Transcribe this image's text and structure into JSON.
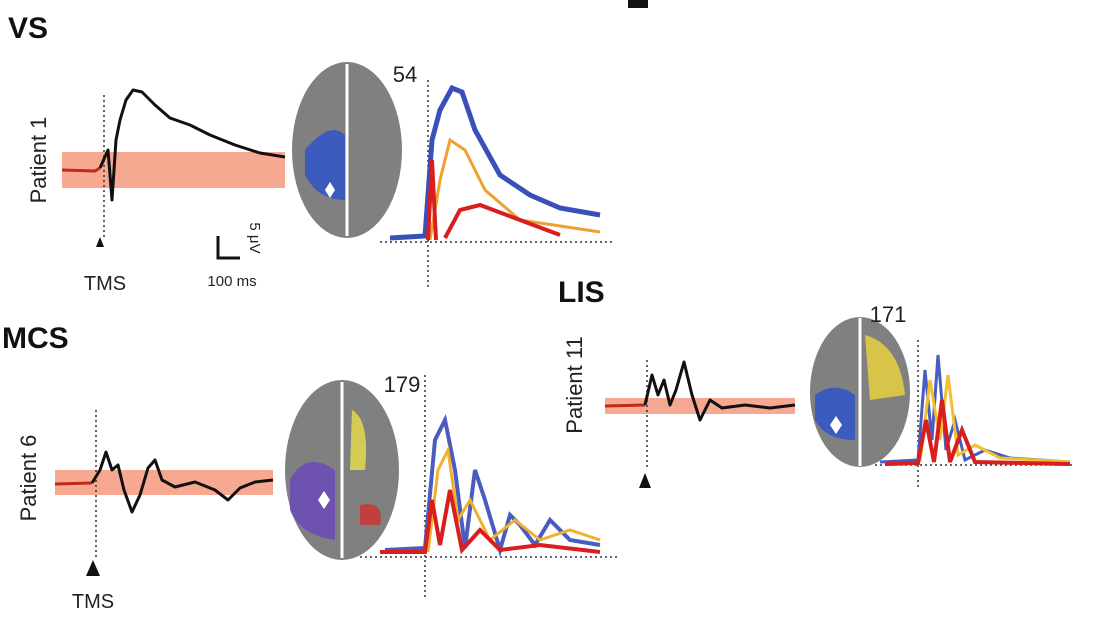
{
  "panels": [
    {
      "group": "VS",
      "patient": "Patient 1",
      "stimulus": "TMS",
      "count": 54
    },
    {
      "group": "MCS",
      "patient": "Patient 6",
      "stimulus": "TMS",
      "count": 179
    },
    {
      "group": "LIS",
      "patient": "Patient 11",
      "count": 171
    }
  ],
  "scale_bar": {
    "time": "100 ms",
    "amplitude": "5 μV"
  }
}
